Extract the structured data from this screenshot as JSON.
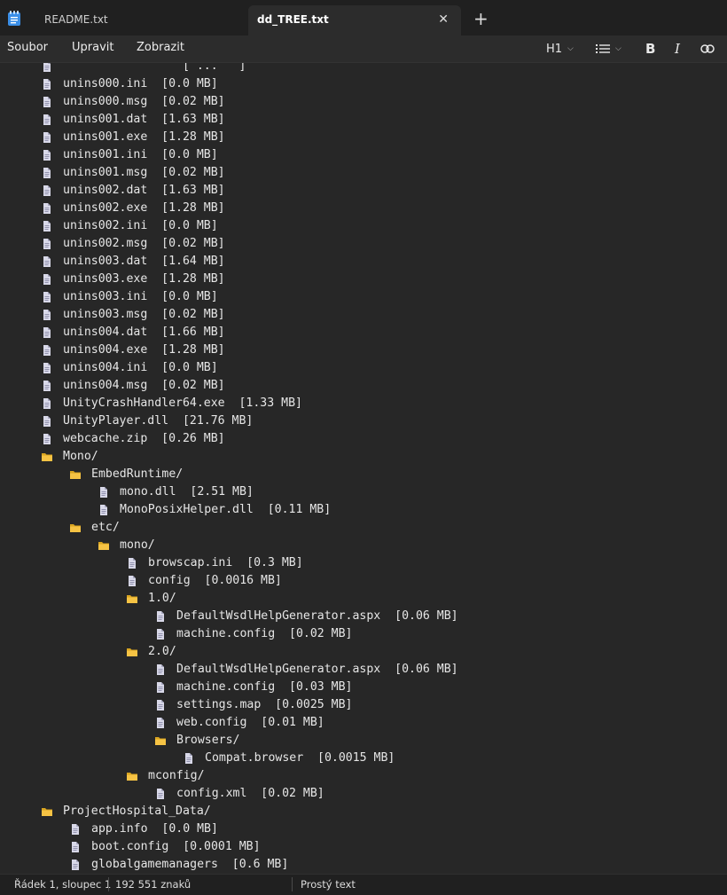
{
  "tabs": [
    {
      "label": "README.txt",
      "active": false
    },
    {
      "label": "dd_TREE.txt",
      "active": true
    }
  ],
  "tab_close_glyph": "✕",
  "new_tab_glyph": "+",
  "menu": {
    "items": [
      "Soubor",
      "Upravit",
      "Zobrazit"
    ],
    "heading_label": "H1",
    "bold_label": "B",
    "italic_label": "I"
  },
  "colors": {
    "folder": "#f6c344",
    "file": "#d8d8e8",
    "accent": "#4aa0ff"
  },
  "lines": [
    {
      "indent": 0,
      "type": "file",
      "text": "                 [ ...   ]"
    },
    {
      "indent": 0,
      "type": "file",
      "text": "unins000.ini  [0.0 MB]"
    },
    {
      "indent": 0,
      "type": "file",
      "text": "unins000.msg  [0.02 MB]"
    },
    {
      "indent": 0,
      "type": "file",
      "text": "unins001.dat  [1.63 MB]"
    },
    {
      "indent": 0,
      "type": "file",
      "text": "unins001.exe  [1.28 MB]"
    },
    {
      "indent": 0,
      "type": "file",
      "text": "unins001.ini  [0.0 MB]"
    },
    {
      "indent": 0,
      "type": "file",
      "text": "unins001.msg  [0.02 MB]"
    },
    {
      "indent": 0,
      "type": "file",
      "text": "unins002.dat  [1.63 MB]"
    },
    {
      "indent": 0,
      "type": "file",
      "text": "unins002.exe  [1.28 MB]"
    },
    {
      "indent": 0,
      "type": "file",
      "text": "unins002.ini  [0.0 MB]"
    },
    {
      "indent": 0,
      "type": "file",
      "text": "unins002.msg  [0.02 MB]"
    },
    {
      "indent": 0,
      "type": "file",
      "text": "unins003.dat  [1.64 MB]"
    },
    {
      "indent": 0,
      "type": "file",
      "text": "unins003.exe  [1.28 MB]"
    },
    {
      "indent": 0,
      "type": "file",
      "text": "unins003.ini  [0.0 MB]"
    },
    {
      "indent": 0,
      "type": "file",
      "text": "unins003.msg  [0.02 MB]"
    },
    {
      "indent": 0,
      "type": "file",
      "text": "unins004.dat  [1.66 MB]"
    },
    {
      "indent": 0,
      "type": "file",
      "text": "unins004.exe  [1.28 MB]"
    },
    {
      "indent": 0,
      "type": "file",
      "text": "unins004.ini  [0.0 MB]"
    },
    {
      "indent": 0,
      "type": "file",
      "text": "unins004.msg  [0.02 MB]"
    },
    {
      "indent": 0,
      "type": "file",
      "text": "UnityCrashHandler64.exe  [1.33 MB]"
    },
    {
      "indent": 0,
      "type": "file",
      "text": "UnityPlayer.dll  [21.76 MB]"
    },
    {
      "indent": 0,
      "type": "file",
      "text": "webcache.zip  [0.26 MB]"
    },
    {
      "indent": 0,
      "type": "folder",
      "text": "Mono/"
    },
    {
      "indent": 1,
      "type": "folder",
      "text": "EmbedRuntime/"
    },
    {
      "indent": 2,
      "type": "file",
      "text": "mono.dll  [2.51 MB]"
    },
    {
      "indent": 2,
      "type": "file",
      "text": "MonoPosixHelper.dll  [0.11 MB]"
    },
    {
      "indent": 1,
      "type": "folder",
      "text": "etc/"
    },
    {
      "indent": 2,
      "type": "folder",
      "text": "mono/"
    },
    {
      "indent": 3,
      "type": "file",
      "text": "browscap.ini  [0.3 MB]"
    },
    {
      "indent": 3,
      "type": "file",
      "text": "config  [0.0016 MB]"
    },
    {
      "indent": 3,
      "type": "folder",
      "text": "1.0/"
    },
    {
      "indent": 4,
      "type": "file",
      "text": "DefaultWsdlHelpGenerator.aspx  [0.06 MB]"
    },
    {
      "indent": 4,
      "type": "file",
      "text": "machine.config  [0.02 MB]"
    },
    {
      "indent": 3,
      "type": "folder",
      "text": "2.0/"
    },
    {
      "indent": 4,
      "type": "file",
      "text": "DefaultWsdlHelpGenerator.aspx  [0.06 MB]"
    },
    {
      "indent": 4,
      "type": "file",
      "text": "machine.config  [0.03 MB]"
    },
    {
      "indent": 4,
      "type": "file",
      "text": "settings.map  [0.0025 MB]"
    },
    {
      "indent": 4,
      "type": "file",
      "text": "web.config  [0.01 MB]"
    },
    {
      "indent": 4,
      "type": "folder",
      "text": "Browsers/"
    },
    {
      "indent": 5,
      "type": "file",
      "text": "Compat.browser  [0.0015 MB]"
    },
    {
      "indent": 3,
      "type": "folder",
      "text": "mconfig/"
    },
    {
      "indent": 4,
      "type": "file",
      "text": "config.xml  [0.02 MB]"
    },
    {
      "indent": 0,
      "type": "folder",
      "text": "ProjectHospital_Data/"
    },
    {
      "indent": 1,
      "type": "file",
      "text": "app.info  [0.0 MB]"
    },
    {
      "indent": 1,
      "type": "file",
      "text": "boot.config  [0.0001 MB]"
    },
    {
      "indent": 1,
      "type": "file",
      "text": "globalgamemanagers  [0.6 MB]"
    },
    {
      "indent": 1,
      "type": "file",
      "text": "                           "
    }
  ],
  "status": {
    "position": "Řádek 1, sloupec 1",
    "char_count": "192 551 znaků",
    "format": "Prostý text"
  }
}
